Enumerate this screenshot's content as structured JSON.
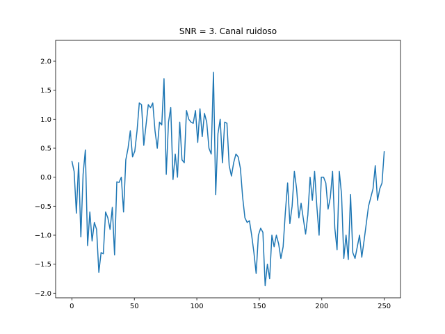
{
  "chart_data": {
    "type": "line",
    "title": "SNR = 3. Canal ruidoso",
    "xlabel": "",
    "ylabel": "",
    "xlim": [
      -13,
      263
    ],
    "ylim": [
      -2.08,
      2.36
    ],
    "xticks": [
      0,
      50,
      100,
      150,
      200,
      250
    ],
    "yticks": [
      -2.0,
      -1.5,
      -1.0,
      -0.5,
      0.0,
      0.5,
      1.0,
      1.5,
      2.0
    ],
    "grid": false,
    "line_color": "#1f77b4",
    "series": [
      {
        "values": [
          0.28,
          0.1,
          -0.62,
          0.25,
          -1.03,
          0.05,
          0.47,
          -1.18,
          -0.6,
          -1.1,
          -0.78,
          -0.9,
          -1.64,
          -1.3,
          -1.32,
          -0.6,
          -0.7,
          -0.9,
          -0.52,
          -1.34,
          -0.08,
          -0.09,
          0.0,
          -0.6,
          0.3,
          0.5,
          0.8,
          0.35,
          0.45,
          0.8,
          1.28,
          1.25,
          0.55,
          0.9,
          1.25,
          1.2,
          1.28,
          0.8,
          0.5,
          0.95,
          0.9,
          1.7,
          0.05,
          0.95,
          1.2,
          -0.04,
          0.4,
          0.0,
          0.95,
          0.3,
          0.25,
          1.15,
          1.0,
          0.95,
          0.93,
          1.15,
          0.6,
          1.18,
          0.7,
          1.1,
          0.95,
          0.5,
          0.4,
          1.81,
          -0.3,
          0.75,
          1.0,
          0.25,
          0.95,
          0.93,
          0.2,
          0.02,
          0.25,
          0.4,
          0.35,
          0.15,
          -0.35,
          -0.7,
          -0.78,
          -0.75,
          -1.0,
          -1.3,
          -1.66,
          -1.0,
          -0.88,
          -0.95,
          -1.87,
          -1.5,
          -1.75,
          -1.0,
          -1.2,
          -1.0,
          -1.15,
          -1.4,
          -1.2,
          -0.6,
          -0.1,
          -0.8,
          -0.5,
          0.1,
          -0.2,
          -0.7,
          -0.45,
          -0.72,
          -0.98,
          -0.65,
          0.0,
          -0.4,
          0.1,
          -0.5,
          -1.0,
          0.0,
          0.0,
          -0.1,
          -0.55,
          -0.35,
          0.1,
          -0.88,
          -1.25,
          0.1,
          -0.3,
          -1.4,
          -1.0,
          -1.42,
          -0.3,
          -1.3,
          -1.4,
          -1.2,
          -1.0,
          -1.38,
          -1.1,
          -0.8,
          -0.5,
          -0.35,
          -0.2,
          0.2,
          -0.4,
          -0.2,
          -0.1,
          0.45
        ]
      }
    ]
  }
}
